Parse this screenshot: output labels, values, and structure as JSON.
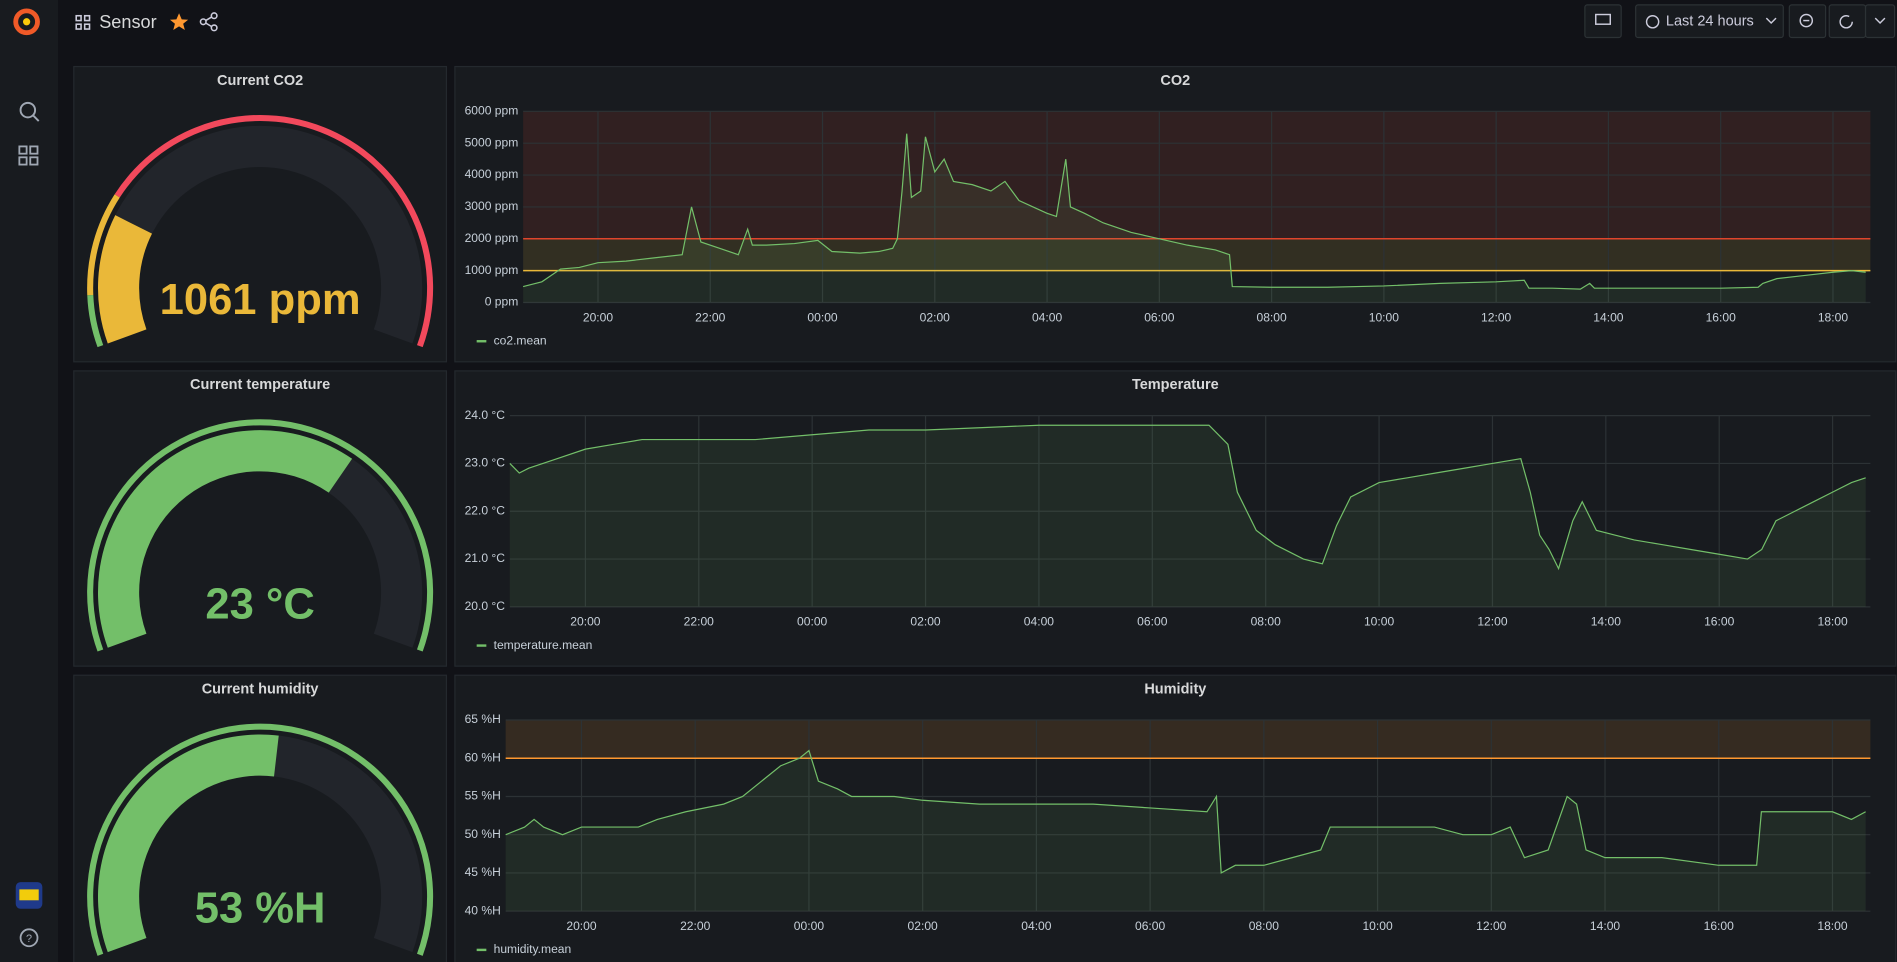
{
  "header": {
    "title": "Sensor",
    "time_range": "Last 24 hours"
  },
  "chart_data": [
    {
      "type": "gauge",
      "title": "Current CO2",
      "values": [
        1061
      ],
      "value_labels": [
        "1061 ppm"
      ],
      "ylim": [
        0,
        5000
      ],
      "color": "#73bf69",
      "thresholds": [
        {
          "value": 400,
          "color": "#eab839"
        },
        {
          "value": 1200,
          "color": "#f2495c"
        }
      ]
    },
    {
      "type": "line",
      "title": "CO2",
      "x": [
        "18:40",
        "19:00",
        "19:20",
        "19:40",
        "20:00",
        "20:30",
        "21:00",
        "21:30",
        "21:40",
        "21:50",
        "22:10",
        "22:30",
        "22:40",
        "22:45",
        "23:00",
        "23:30",
        "23:55",
        "00:10",
        "00:40",
        "01:00",
        "01:15",
        "01:20",
        "01:25",
        "01:30",
        "01:35",
        "01:45",
        "01:50",
        "02:00",
        "02:10",
        "02:20",
        "02:40",
        "03:00",
        "03:15",
        "03:30",
        "03:45",
        "04:00",
        "04:10",
        "04:20",
        "04:25",
        "04:40",
        "05:00",
        "05:30",
        "06:00",
        "06:30",
        "07:00",
        "07:15",
        "07:18",
        "08:00",
        "09:00",
        "10:00",
        "11:00",
        "12:00",
        "12:30",
        "12:35",
        "13:00",
        "13:30",
        "13:40",
        "13:45",
        "15:00",
        "16:00",
        "16:40",
        "16:45",
        "17:00",
        "17:30",
        "18:00",
        "18:20",
        "18:35"
      ],
      "series": [
        {
          "name": "co2.mean",
          "color": "#73bf69",
          "values": [
            500,
            650,
            1050,
            1100,
            1250,
            1300,
            1400,
            1500,
            3000,
            1900,
            1700,
            1500,
            2300,
            1800,
            1800,
            1850,
            1950,
            1600,
            1550,
            1600,
            1700,
            2000,
            3500,
            5300,
            3300,
            3500,
            5200,
            4100,
            4500,
            3800,
            3700,
            3500,
            3800,
            3200,
            3000,
            2800,
            2700,
            4500,
            3000,
            2800,
            2500,
            2200,
            2000,
            1800,
            1650,
            1500,
            500,
            480,
            480,
            520,
            600,
            650,
            700,
            450,
            450,
            420,
            600,
            450,
            450,
            450,
            480,
            600,
            750,
            850,
            950,
            1000,
            950
          ]
        }
      ],
      "xlim": [
        "18:40",
        "18:40"
      ],
      "xticks": [
        "20:00",
        "22:00",
        "00:00",
        "02:00",
        "04:00",
        "06:00",
        "08:00",
        "10:00",
        "12:00",
        "14:00",
        "16:00",
        "18:00"
      ],
      "ylim": [
        0,
        6000
      ],
      "yticks": [
        {
          "value": 0,
          "label": "0 ppm"
        },
        {
          "value": 1000,
          "label": "1000 ppm"
        },
        {
          "value": 2000,
          "label": "2000 ppm"
        },
        {
          "value": 3000,
          "label": "3000 ppm"
        },
        {
          "value": 4000,
          "label": "4000 ppm"
        },
        {
          "value": 5000,
          "label": "5000 ppm"
        },
        {
          "value": 6000,
          "label": "6000 ppm"
        }
      ],
      "grid": true,
      "thresholds": [
        {
          "value": 1000,
          "color": "#eab839"
        },
        {
          "value": 2000,
          "color": "#e0452c"
        }
      ]
    },
    {
      "type": "gauge",
      "title": "Current temperature",
      "values": [
        23
      ],
      "value_labels": [
        "23 °C"
      ],
      "ylim": [
        0,
        35
      ],
      "color": "#73bf69",
      "thresholds": []
    },
    {
      "type": "line",
      "title": "Temperature",
      "x": [
        "18:40",
        "18:50",
        "19:00",
        "19:30",
        "20:00",
        "20:30",
        "21:00",
        "22:00",
        "23:00",
        "00:00",
        "01:00",
        "02:00",
        "03:00",
        "04:00",
        "05:00",
        "06:00",
        "07:00",
        "07:20",
        "07:30",
        "07:50",
        "08:10",
        "08:40",
        "09:00",
        "09:15",
        "09:30",
        "10:00",
        "10:30",
        "11:00",
        "11:30",
        "12:00",
        "12:30",
        "12:40",
        "12:50",
        "13:00",
        "13:10",
        "13:25",
        "13:35",
        "13:50",
        "14:10",
        "14:30",
        "15:00",
        "15:30",
        "16:00",
        "16:30",
        "16:45",
        "17:00",
        "17:20",
        "17:40",
        "18:00",
        "18:20",
        "18:35"
      ],
      "series": [
        {
          "name": "temperature.mean",
          "color": "#73bf69",
          "values": [
            23.0,
            22.8,
            22.9,
            23.1,
            23.3,
            23.4,
            23.5,
            23.5,
            23.5,
            23.6,
            23.7,
            23.7,
            23.75,
            23.8,
            23.8,
            23.8,
            23.8,
            23.4,
            22.4,
            21.6,
            21.3,
            21.0,
            20.9,
            21.7,
            22.3,
            22.6,
            22.7,
            22.8,
            22.9,
            23.0,
            23.1,
            22.4,
            21.5,
            21.2,
            20.8,
            21.8,
            22.2,
            21.6,
            21.5,
            21.4,
            21.3,
            21.2,
            21.1,
            21.0,
            21.2,
            21.8,
            22.0,
            22.2,
            22.4,
            22.6,
            22.7
          ]
        }
      ],
      "xlim": [
        "18:40",
        "18:40"
      ],
      "xticks": [
        "20:00",
        "22:00",
        "00:00",
        "02:00",
        "04:00",
        "06:00",
        "08:00",
        "10:00",
        "12:00",
        "14:00",
        "16:00",
        "18:00"
      ],
      "ylim": [
        20,
        24
      ],
      "yticks": [
        {
          "value": 20,
          "label": "20.0 °C"
        },
        {
          "value": 21,
          "label": "21.0 °C"
        },
        {
          "value": 22,
          "label": "22.0 °C"
        },
        {
          "value": 23,
          "label": "23.0 °C"
        },
        {
          "value": 24,
          "label": "24.0 °C"
        }
      ],
      "grid": true,
      "thresholds": []
    },
    {
      "type": "gauge",
      "title": "Current humidity",
      "values": [
        53
      ],
      "value_labels": [
        "53 %H"
      ],
      "ylim": [
        0,
        100
      ],
      "color": "#73bf69",
      "thresholds": []
    },
    {
      "type": "line",
      "title": "Humidity",
      "x": [
        "18:40",
        "19:00",
        "19:10",
        "19:20",
        "19:40",
        "20:00",
        "21:00",
        "21:20",
        "21:50",
        "22:30",
        "22:50",
        "23:10",
        "23:30",
        "23:50",
        "00:00",
        "00:10",
        "00:30",
        "00:45",
        "01:30",
        "02:00",
        "03:00",
        "04:00",
        "05:00",
        "06:00",
        "07:00",
        "07:10",
        "07:15",
        "07:30",
        "08:00",
        "08:30",
        "09:00",
        "09:10",
        "10:00",
        "11:00",
        "11:30",
        "12:00",
        "12:20",
        "12:35",
        "13:00",
        "13:20",
        "13:30",
        "13:40",
        "14:00",
        "15:00",
        "16:00",
        "16:40",
        "16:45",
        "17:00",
        "17:30",
        "18:00",
        "18:20",
        "18:35"
      ],
      "series": [
        {
          "name": "humidity.mean",
          "color": "#73bf69",
          "values": [
            50,
            51,
            52,
            51,
            50,
            51,
            51,
            52,
            53,
            54,
            55,
            57,
            59,
            60,
            61,
            57,
            56,
            55,
            55,
            54.5,
            54,
            54,
            54,
            53.5,
            53,
            55,
            45,
            46,
            46,
            47,
            48,
            51,
            51,
            51,
            50,
            50,
            51,
            47,
            48,
            55,
            54,
            48,
            47,
            47,
            46,
            46,
            53,
            53,
            53,
            53,
            52,
            53
          ]
        }
      ],
      "xlim": [
        "18:40",
        "18:40"
      ],
      "xticks": [
        "20:00",
        "22:00",
        "00:00",
        "02:00",
        "04:00",
        "06:00",
        "08:00",
        "10:00",
        "12:00",
        "14:00",
        "16:00",
        "18:00"
      ],
      "ylim": [
        40,
        65
      ],
      "yticks": [
        {
          "value": 40,
          "label": "40 %H"
        },
        {
          "value": 45,
          "label": "45 %H"
        },
        {
          "value": 50,
          "label": "50 %H"
        },
        {
          "value": 55,
          "label": "55 %H"
        },
        {
          "value": 60,
          "label": "60 %H"
        },
        {
          "value": 65,
          "label": "65 %H"
        }
      ],
      "grid": true,
      "thresholds": [
        {
          "value": 60,
          "color": "#ff9830"
        }
      ]
    }
  ]
}
